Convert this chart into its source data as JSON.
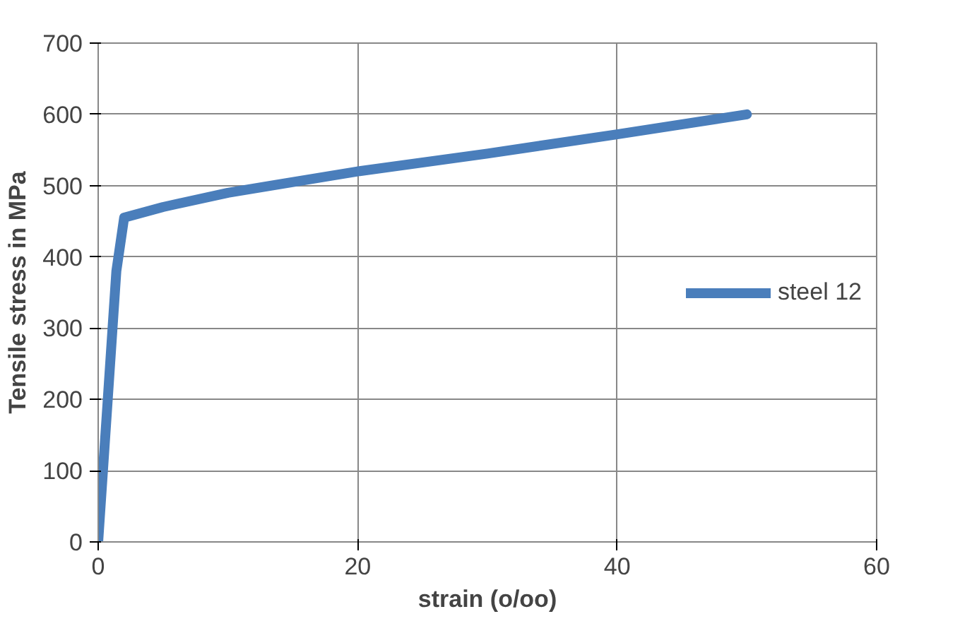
{
  "chart_data": {
    "type": "line",
    "xlabel": "strain (o/oo)",
    "ylabel": "Tensile stress in MPa",
    "x": [
      0,
      1.4,
      2,
      5,
      10,
      20,
      30,
      40,
      50
    ],
    "series": [
      {
        "name": "steel 12",
        "color": "#4a7ebb",
        "values": [
          0,
          380,
          455,
          470,
          490,
          520,
          545,
          572,
          600
        ]
      }
    ],
    "xlim": [
      0,
      60
    ],
    "ylim": [
      0,
      700
    ],
    "xticks": [
      0,
      20,
      40,
      60
    ],
    "yticks": [
      0,
      100,
      200,
      300,
      400,
      500,
      600,
      700
    ],
    "grid": true,
    "legend": "right",
    "marker": "none",
    "line_style": "solid"
  }
}
